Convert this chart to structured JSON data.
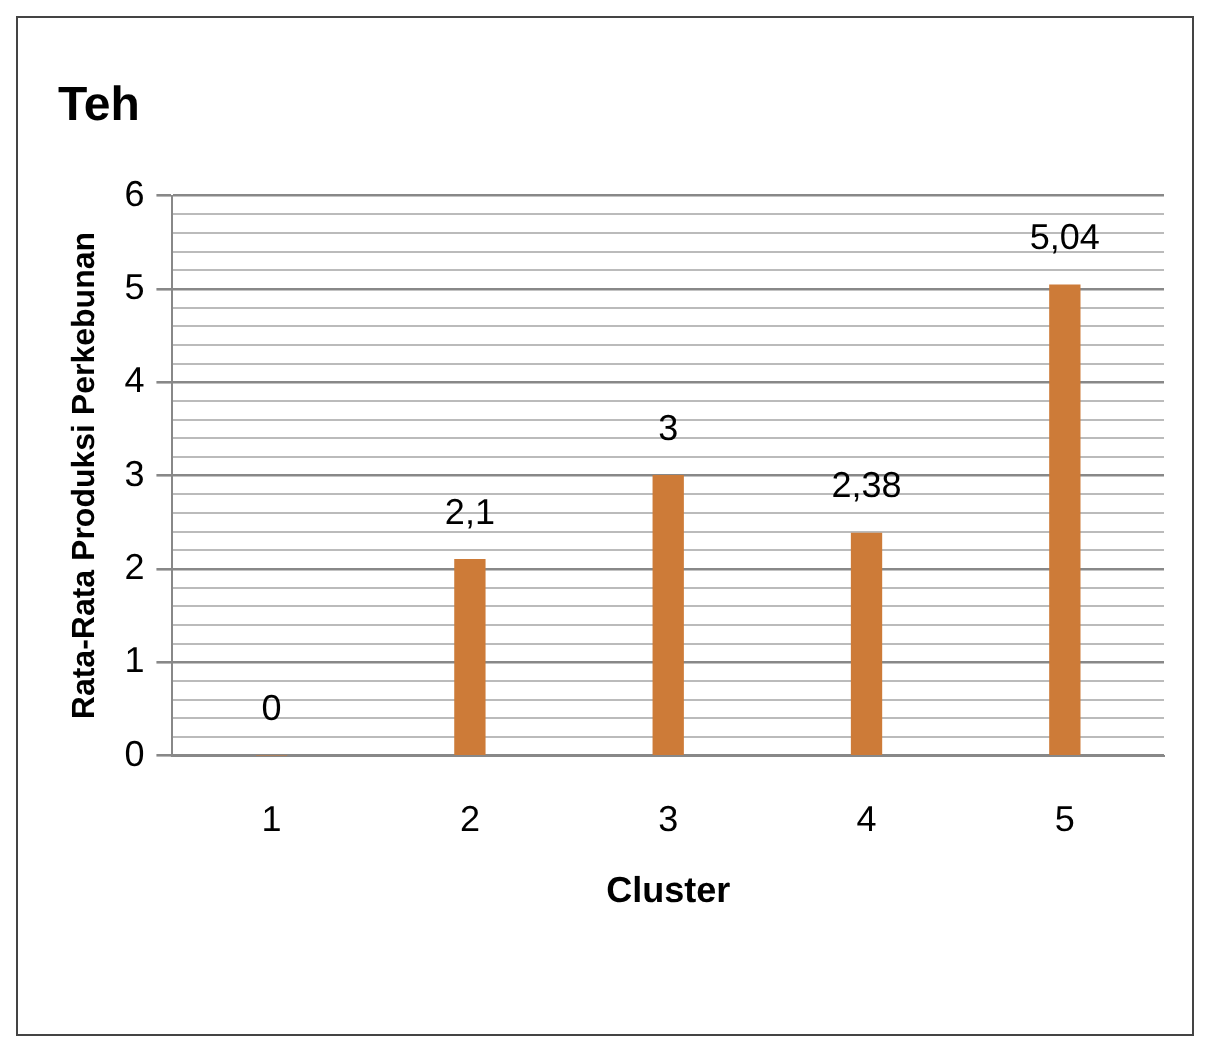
{
  "chart_data": {
    "type": "bar",
    "title": "Teh",
    "xlabel": "Cluster",
    "ylabel": "Rata-Rata Produksi Perkebunan",
    "categories": [
      "1",
      "2",
      "3",
      "4",
      "5"
    ],
    "values": [
      0,
      2.1,
      3,
      2.38,
      5.04
    ],
    "value_labels": [
      "0",
      "2,1",
      "3",
      "2,38",
      "5,04"
    ],
    "color": "#cd7b38",
    "ylim": [
      0,
      6
    ],
    "yticks": [
      0,
      {
        "value": 0.2,
        "label": null
      },
      {
        "value": 0.4,
        "label": null
      },
      {
        "value": 0.6,
        "label": null
      },
      {
        "value": 0.8,
        "label": null
      },
      1,
      {
        "value": 1.2,
        "label": null
      },
      {
        "value": 1.4,
        "label": null
      },
      {
        "value": 1.6,
        "label": null
      },
      {
        "value": 1.8,
        "label": null
      },
      2,
      {
        "value": 2.2,
        "label": null
      },
      {
        "value": 2.4,
        "label": null
      },
      {
        "value": 2.6,
        "label": null
      },
      {
        "value": 2.8,
        "label": null
      },
      3,
      {
        "value": 3.2,
        "label": null
      },
      {
        "value": 3.4,
        "label": null
      },
      {
        "value": 3.6,
        "label": null
      },
      {
        "value": 3.8,
        "label": null
      },
      4,
      {
        "value": 4.2,
        "label": null
      },
      {
        "value": 4.4,
        "label": null
      },
      {
        "value": 4.6,
        "label": null
      },
      {
        "value": 4.8,
        "label": null
      },
      5,
      {
        "value": 5.2,
        "label": null
      },
      {
        "value": 5.4,
        "label": null
      },
      {
        "value": 5.6,
        "label": null
      },
      {
        "value": 5.8,
        "label": null
      },
      6
    ],
    "grid": "y",
    "legend": false
  }
}
